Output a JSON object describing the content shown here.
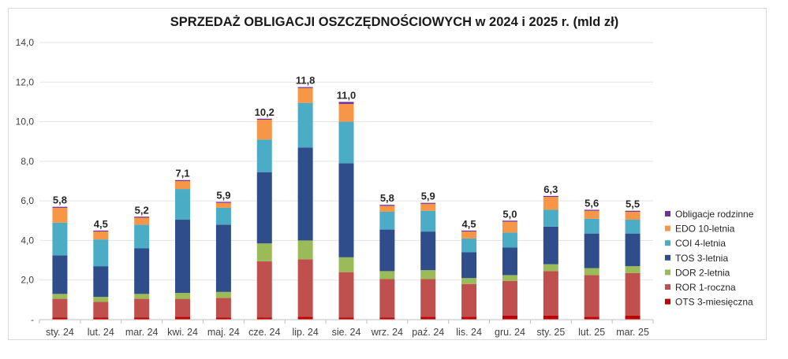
{
  "chart_data": {
    "type": "bar",
    "stacked": true,
    "title": "SPRZEDAŻ OBLIGACJI OSZCZĘDNOŚCIOWYCH w 2024 i 2025 r. (mld zł)",
    "xlabel": "",
    "ylabel": "",
    "ylim": [
      0,
      14
    ],
    "yticks": [
      "-",
      "2,0",
      "4,0",
      "6,0",
      "8,0",
      "10,0",
      "12,0",
      "14,0"
    ],
    "grid": true,
    "legend_position": "right",
    "categories": [
      "sty. 24",
      "lut. 24",
      "mar. 24",
      "kwi. 24",
      "maj. 24",
      "cze. 24",
      "lip. 24",
      "sie. 24",
      "wrz. 24",
      "paź. 24",
      "lis. 24",
      "gru. 24",
      "sty. 25",
      "lut. 25",
      "mar. 25"
    ],
    "totals": [
      "5,8",
      "4,5",
      "5,2",
      "7,1",
      "5,9",
      "10,2",
      "11,8",
      "11,0",
      "5,8",
      "5,9",
      "4,5",
      "5,0",
      "6,3",
      "5,6",
      "5,5"
    ],
    "series": [
      {
        "name": "OTS 3-miesięczna",
        "color": "#c00000",
        "values": [
          0.1,
          0.1,
          0.1,
          0.15,
          0.1,
          0.1,
          0.15,
          0.1,
          0.1,
          0.15,
          0.15,
          0.2,
          0.2,
          0.15,
          0.2
        ]
      },
      {
        "name": "ROR 1-roczna",
        "color": "#c0504d",
        "values": [
          0.95,
          0.8,
          0.95,
          0.9,
          1.0,
          2.85,
          2.9,
          2.3,
          1.95,
          1.9,
          1.65,
          1.75,
          2.25,
          2.1,
          2.15
        ]
      },
      {
        "name": "DOR 2-letnia",
        "color": "#9bbb59",
        "values": [
          0.25,
          0.25,
          0.25,
          0.3,
          0.3,
          0.9,
          0.95,
          0.75,
          0.4,
          0.45,
          0.3,
          0.3,
          0.35,
          0.35,
          0.35
        ]
      },
      {
        "name": "TOS 3-letnia",
        "color": "#2e4d8a",
        "values": [
          1.95,
          1.55,
          2.3,
          3.7,
          3.4,
          3.6,
          4.7,
          4.75,
          2.1,
          1.95,
          1.3,
          1.4,
          1.9,
          1.75,
          1.65
        ]
      },
      {
        "name": "COI 4-letnia",
        "color": "#4bacc6",
        "values": [
          1.65,
          1.35,
          1.2,
          1.55,
          0.85,
          1.65,
          2.25,
          2.1,
          0.9,
          1.05,
          0.7,
          0.75,
          0.85,
          0.75,
          0.7
        ]
      },
      {
        "name": "EDO 10-letnia",
        "color": "#f79646",
        "values": [
          0.75,
          0.4,
          0.35,
          0.4,
          0.25,
          1.0,
          0.75,
          0.9,
          0.3,
          0.35,
          0.35,
          0.55,
          0.65,
          0.4,
          0.4
        ]
      },
      {
        "name": "Obligacje rodzinne",
        "color": "#7030a0",
        "values": [
          0.05,
          0.05,
          0.05,
          0.05,
          0.05,
          0.05,
          0.05,
          0.1,
          0.05,
          0.05,
          0.05,
          0.05,
          0.05,
          0.05,
          0.05
        ]
      }
    ]
  }
}
